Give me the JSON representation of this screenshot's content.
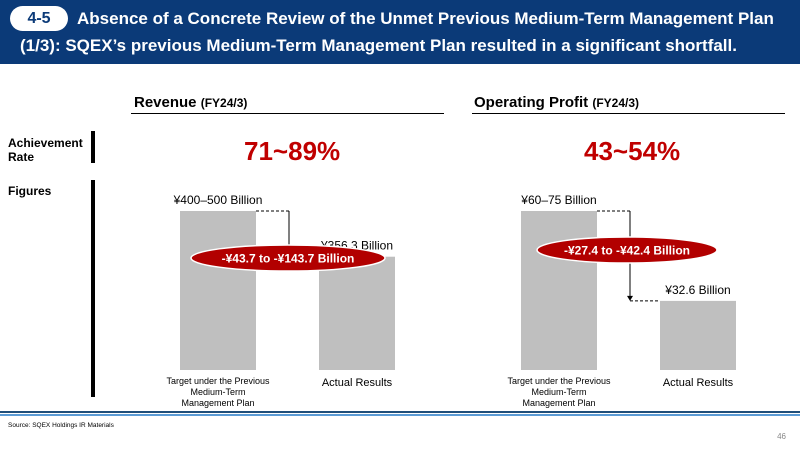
{
  "header": {
    "badge": "4-5",
    "title_line1": "Absence of a Concrete Review of the Unmet Previous Medium-Term Management Plan",
    "title_line2": "(1/3): SQEX’s previous Medium-Term Management Plan resulted in a significant shortfall."
  },
  "row_labels": {
    "achievement_rate": "Achievement Rate",
    "figures": "Figures"
  },
  "revenue": {
    "title": "Revenue",
    "period": "(FY24/3)",
    "achievement_rate": "71~89%"
  },
  "operating_profit": {
    "title": "Operating Profit",
    "period": "(FY24/3)",
    "achievement_rate": "43~54%"
  },
  "colors": {
    "header_bg": "#0b3a78",
    "bar": "#bfbfbf",
    "accent_red": "#c00000",
    "ellipse": "#b20000"
  },
  "chart_data": [
    {
      "type": "bar",
      "title": "Revenue (FY24/3)",
      "unit": "¥ Billion",
      "categories": [
        "Target under the Previous Medium-Term Management Plan",
        "Actual Results"
      ],
      "category_labels": [
        [
          "Target under the Previous",
          "Medium-Term",
          "Management Plan"
        ],
        [
          "Actual Results"
        ]
      ],
      "values": [
        500,
        356.3
      ],
      "target_range": [
        400,
        500
      ],
      "value_labels": [
        "¥400–500 Billion",
        "¥356.3 Billion"
      ],
      "gap_label": "-¥43.7 to -¥143.7 Billion",
      "ylim": [
        0,
        500
      ]
    },
    {
      "type": "bar",
      "title": "Operating Profit (FY24/3)",
      "unit": "¥ Billion",
      "categories": [
        "Target under the Previous Medium-Term Management Plan",
        "Actual Results"
      ],
      "category_labels": [
        [
          "Target under the Previous",
          "Medium-Term",
          "Management Plan"
        ],
        [
          "Actual Results"
        ]
      ],
      "values": [
        75,
        32.6
      ],
      "target_range": [
        60,
        75
      ],
      "value_labels": [
        "¥60–75 Billion",
        "¥32.6 Billion"
      ],
      "gap_label": "-¥27.4 to -¥42.4 Billion",
      "ylim": [
        0,
        75
      ]
    }
  ],
  "footer": {
    "source": "Source: SQEX Holdings IR Materials",
    "page": "46"
  }
}
